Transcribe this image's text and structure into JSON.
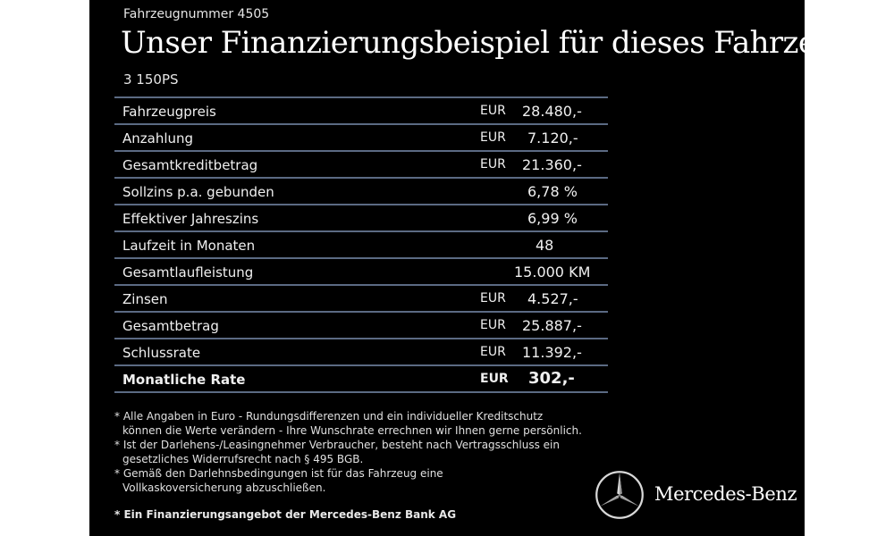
{
  "header": {
    "vehicle_number": "Fahrzeugnummer 4505",
    "headline": "Unser Finanzierungsbeispiel für dieses Fahrzeug.*",
    "subtitle": "3 150PS"
  },
  "table": {
    "rows": [
      {
        "label": "Fahrzeugpreis",
        "currency": "EUR",
        "value": "28.480,-"
      },
      {
        "label": "Anzahlung",
        "currency": "EUR",
        "value": "7.120,-"
      },
      {
        "label": "Gesamtkreditbetrag",
        "currency": "EUR",
        "value": "21.360,-"
      },
      {
        "label": "Sollzins p.a. gebunden",
        "currency": "",
        "value": "6,78 %"
      },
      {
        "label": "Effektiver Jahreszins",
        "currency": "",
        "value": "6,99 %"
      },
      {
        "label": "Laufzeit in Monaten",
        "currency": "",
        "value": "48"
      },
      {
        "label": "Gesamtlaufleistung",
        "currency": "",
        "value": "15.000 KM"
      },
      {
        "label": "Zinsen",
        "currency": "EUR",
        "value": "4.527,-"
      },
      {
        "label": "Gesamtbetrag",
        "currency": "EUR",
        "value": "25.887,-"
      },
      {
        "label": "Schlussrate",
        "currency": "EUR",
        "value": "11.392,-"
      },
      {
        "label": "Monatliche Rate",
        "currency": "EUR",
        "value": "302,-"
      }
    ]
  },
  "footnotes": {
    "lines": [
      "* Alle Angaben in Euro - Rundungsdifferenzen und ein individueller Kreditschutz",
      "  können die Werte verändern - Ihre Wunschrate errechnen wir Ihnen gerne persönlich.",
      "* Ist der Darlehens-/Leasingnehmer Verbraucher, besteht nach Vertragsschluss ein",
      "  gesetzliches Widerrufsrecht nach § 495 BGB.",
      "* Gemäß den Darlehnsbedingungen ist für das Fahrzeug eine",
      "  Vollkaskoversicherung abzuschließen."
    ],
    "bank_note": "* Ein Finanzierungsangebot der Mercedes-Benz Bank AG"
  },
  "brand": {
    "name": "Mercedes-Benz",
    "logo_icon": "mercedes-star-icon"
  }
}
